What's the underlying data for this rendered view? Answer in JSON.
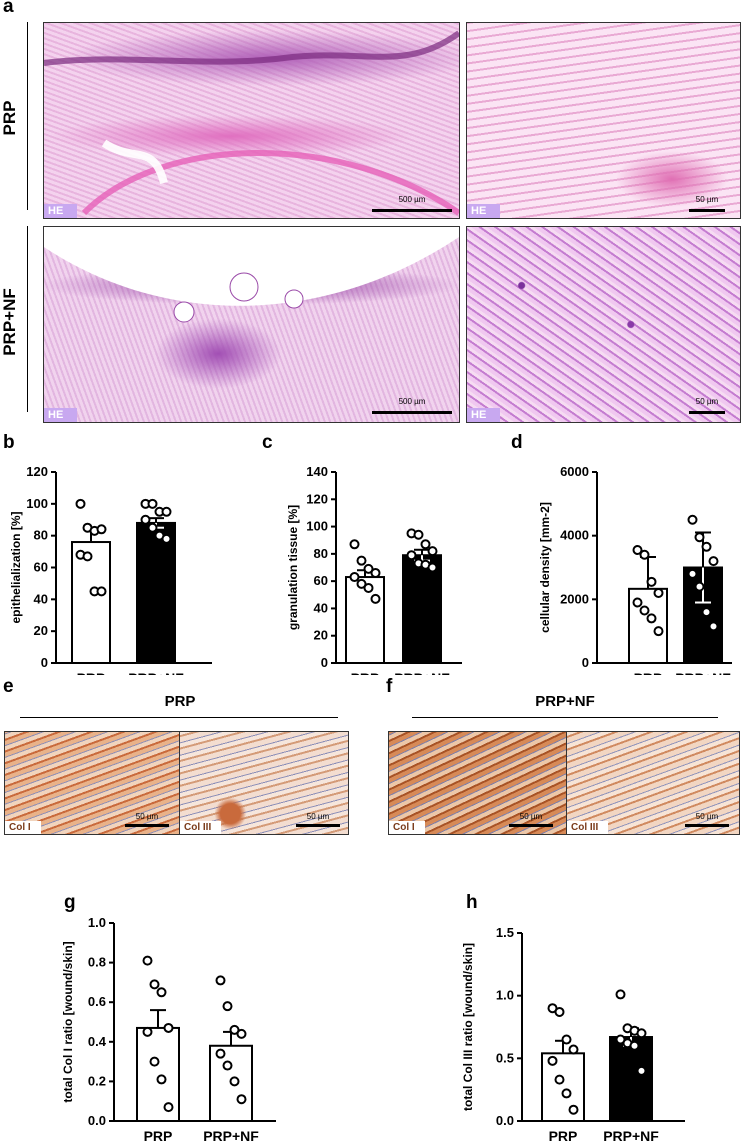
{
  "panel_a": {
    "letter": "a",
    "rows": [
      {
        "label": "PRP",
        "stain": "HE",
        "scales": [
          "500 µm",
          "50 µm"
        ]
      },
      {
        "label": "PRP+NF",
        "stain": "HE",
        "scales": [
          "500 µm",
          "50 µm"
        ]
      }
    ]
  },
  "panel_ef": {
    "e": {
      "letter": "e",
      "group": "PRP",
      "stains": [
        "Col I",
        "Col III"
      ],
      "scales": [
        "50 µm",
        "50 µm"
      ]
    },
    "f": {
      "letter": "f",
      "group": "PRP+NF",
      "stains": [
        "Col I",
        "Col III"
      ],
      "scales": [
        "50 µm",
        "50 µm"
      ]
    }
  },
  "chart_data": [
    {
      "id": "b",
      "letter": "b",
      "type": "bar",
      "categories": [
        "PRP",
        "PRP+NF"
      ],
      "values": [
        76,
        88
      ],
      "errors": [
        8,
        3
      ],
      "points": [
        [
          100,
          85,
          83,
          84,
          68,
          67,
          45,
          45
        ],
        [
          100,
          100,
          95,
          95,
          90,
          85,
          80,
          78
        ]
      ],
      "ylabel": "epithelialization [%]",
      "ylim": [
        0,
        120
      ],
      "yticks": [
        0,
        20,
        40,
        60,
        80,
        100,
        120
      ],
      "colors": [
        "#ffffff",
        "#000000"
      ]
    },
    {
      "id": "c",
      "letter": "c",
      "type": "bar",
      "categories": [
        "PRP",
        "PRP+NF"
      ],
      "values": [
        63,
        79
      ],
      "errors": [
        5,
        4
      ],
      "points": [
        [
          87,
          75,
          69,
          66,
          63,
          58,
          55,
          47
        ],
        [
          95,
          94,
          87,
          82,
          79,
          73,
          72,
          70
        ]
      ],
      "ylabel": "granulation tissue [%]",
      "ylim": [
        0,
        140
      ],
      "yticks": [
        0,
        20,
        40,
        60,
        80,
        100,
        120,
        140
      ],
      "colors": [
        "#ffffff",
        "#000000"
      ]
    },
    {
      "id": "d",
      "letter": "d",
      "type": "bar",
      "categories": [
        "PRP",
        "PRP+NF"
      ],
      "values": [
        2330,
        3000
      ],
      "errors": [
        1000,
        1100
      ],
      "points": [
        [
          3550,
          3400,
          2550,
          2200,
          1900,
          1650,
          1400,
          1000
        ],
        [
          4500,
          3950,
          3650,
          3200,
          2800,
          2400,
          1600,
          1150
        ]
      ],
      "ylabel": "cellular density [mm-2]",
      "ylim": [
        0,
        6000
      ],
      "yticks": [
        0,
        2000,
        4000,
        6000
      ],
      "colors": [
        "#ffffff",
        "#000000"
      ]
    },
    {
      "id": "g",
      "letter": "g",
      "type": "bar",
      "categories": [
        "PRP",
        "PRP+NF"
      ],
      "values": [
        0.47,
        0.38
      ],
      "errors": [
        0.09,
        0.07
      ],
      "points": [
        [
          0.81,
          0.69,
          0.65,
          0.47,
          0.45,
          0.3,
          0.21,
          0.07
        ],
        [
          0.71,
          0.58,
          0.46,
          0.44,
          0.34,
          0.28,
          0.2,
          0.11
        ]
      ],
      "ylabel": "total Col I ratio [wound/skin]",
      "ylim": [
        0,
        1.0
      ],
      "yticks": [
        0.0,
        0.2,
        0.4,
        0.6,
        0.8,
        1.0
      ],
      "colors": [
        "#ffffff",
        "#ffffff"
      ]
    },
    {
      "id": "h",
      "letter": "h",
      "type": "bar",
      "categories": [
        "PRP",
        "PRP+NF"
      ],
      "values": [
        0.54,
        0.67
      ],
      "errors": [
        0.1,
        0.07
      ],
      "points": [
        [
          0.9,
          0.87,
          0.65,
          0.57,
          0.48,
          0.33,
          0.22,
          0.09
        ],
        [
          1.01,
          0.74,
          0.72,
          0.7,
          0.65,
          0.62,
          0.6,
          0.4
        ]
      ],
      "ylabel": "total Col III ratio [wound/skin]",
      "ylim": [
        0,
        1.5
      ],
      "yticks": [
        0.0,
        0.5,
        1.0,
        1.5
      ],
      "colors": [
        "#ffffff",
        "#000000"
      ]
    }
  ]
}
